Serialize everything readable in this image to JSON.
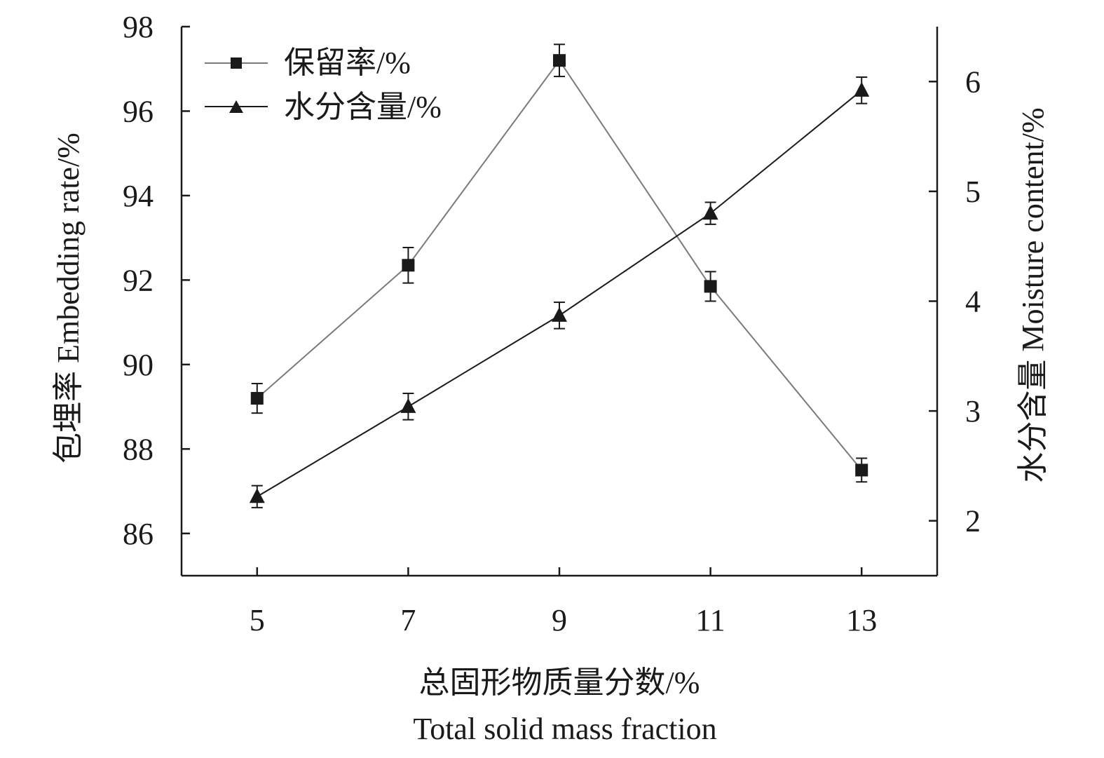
{
  "chart_data": {
    "type": "line",
    "x": [
      5,
      7,
      9,
      11,
      13
    ],
    "xlabel": "总固形物质量分数/%",
    "xlabel_en": "Total solid mass fraction",
    "xlim": [
      4,
      14
    ],
    "xticks": [
      "5",
      "7",
      "9",
      "11",
      "13"
    ],
    "y_left": {
      "label": "包埋率 Embedding rate/%",
      "lim": [
        85,
        98
      ],
      "ticks": [
        "86",
        "88",
        "90",
        "92",
        "94",
        "96",
        "98"
      ]
    },
    "y_right": {
      "label": "水分含量 Moisture content/%",
      "lim": [
        1.5,
        6.5
      ],
      "ticks": [
        "2",
        "3",
        "4",
        "5",
        "6"
      ]
    },
    "series": [
      {
        "name": "保留率/%",
        "axis": "left",
        "marker": "square",
        "color": "#7a7a7a",
        "values": [
          89.2,
          92.35,
          97.2,
          91.85,
          87.5
        ],
        "errors": [
          0.35,
          0.42,
          0.38,
          0.35,
          0.28
        ]
      },
      {
        "name": "水分含量/%",
        "axis": "right",
        "marker": "triangle",
        "color": "#1a1a1a",
        "values": [
          2.22,
          3.04,
          3.87,
          4.8,
          5.92
        ],
        "errors": [
          0.1,
          0.12,
          0.12,
          0.1,
          0.12
        ]
      }
    ],
    "legend_position": "top-left",
    "grid": false
  }
}
